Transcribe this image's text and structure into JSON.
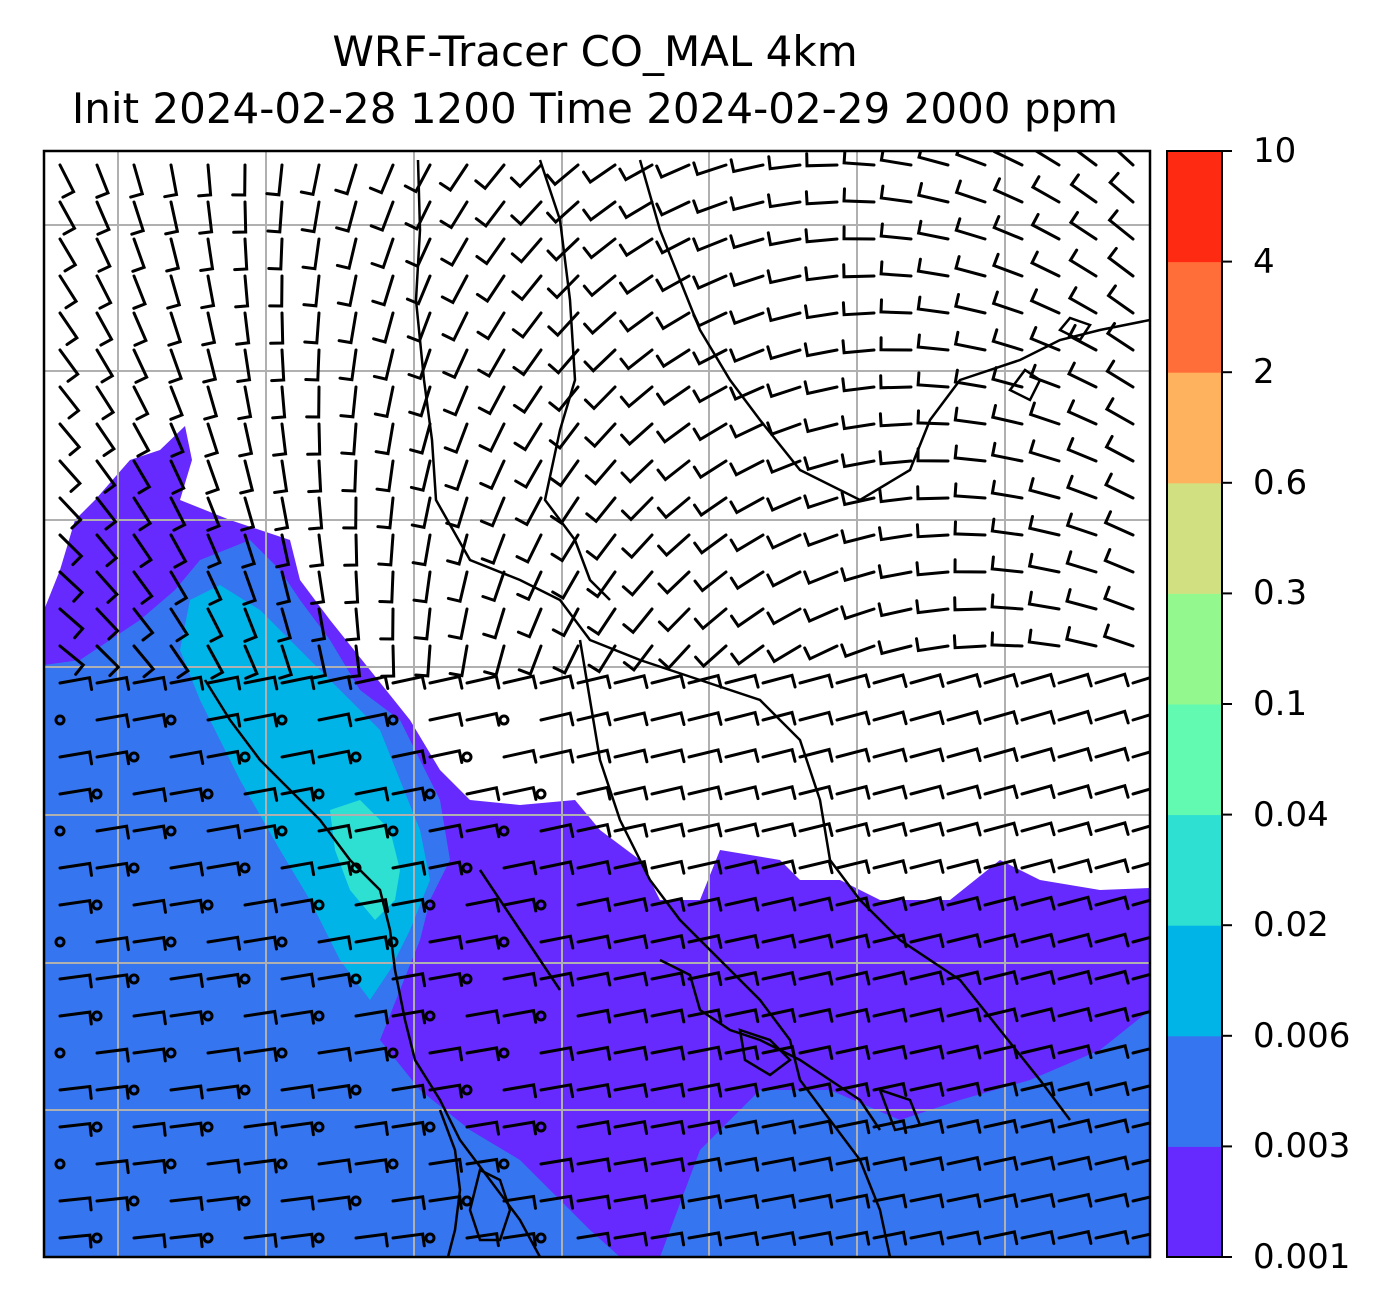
{
  "title": {
    "line1": "WRF-Tracer CO_MAL 4km",
    "line2": "Init 2024-02-28 1200 Time 2024-02-29 2000 ppm"
  },
  "colorbar": {
    "levels": [
      "0.001",
      "0.003",
      "0.006",
      "0.02",
      "0.04",
      "0.1",
      "0.3",
      "0.6",
      "2",
      "4",
      "10"
    ],
    "colors": [
      "#6629fe",
      "#3575f0",
      "#00b4e8",
      "#2ee0d2",
      "#62f9b1",
      "#93f98e",
      "#d1e182",
      "#ffb25e",
      "#ff6d38",
      "#ff2a12"
    ]
  },
  "map": {
    "background": "#ffffff",
    "gridline_color": "#b0b0b0",
    "coastline_color": "#000000",
    "barb_color": "#000000"
  }
}
